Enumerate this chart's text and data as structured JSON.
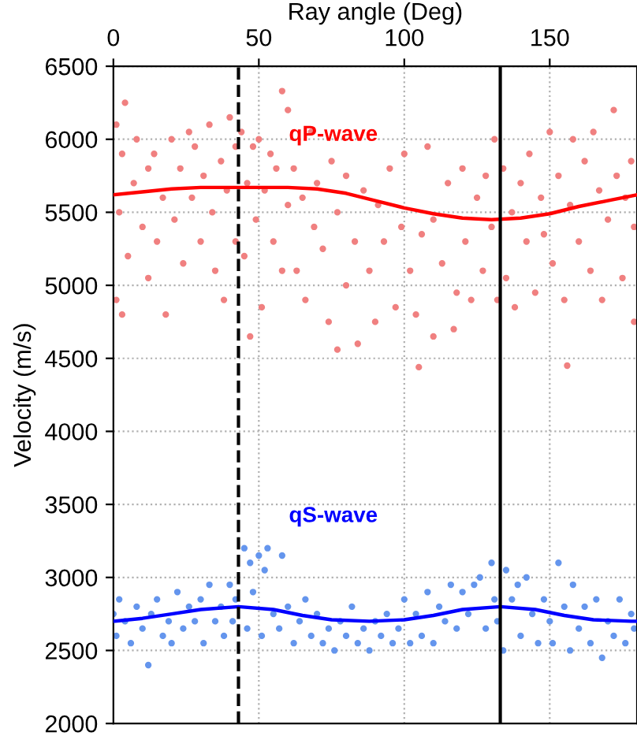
{
  "chart_data": {
    "type": "scatter",
    "xlabel": "Ray angle (Deg)",
    "ylabel": "Velocity (m/s)",
    "xlim": [
      0,
      180
    ],
    "xticks": [
      0,
      50,
      100,
      150
    ],
    "ylim": [
      2000,
      6500
    ],
    "yticks": [
      2000,
      2500,
      3000,
      3500,
      4000,
      4500,
      5000,
      5500,
      6000,
      6500
    ],
    "grid": true,
    "series": [
      {
        "marker": "circle",
        "color": "#f08080",
        "x": [
          1,
          4,
          3,
          2,
          1,
          3,
          5,
          7,
          8,
          10,
          12,
          12,
          14,
          15,
          17,
          18,
          20,
          21,
          23,
          24,
          26,
          27,
          28,
          30,
          31,
          33,
          34,
          35,
          37,
          38,
          39,
          40,
          42,
          42,
          44,
          45,
          46,
          47,
          48,
          49,
          50,
          51,
          52,
          54,
          55,
          56,
          58,
          58,
          60,
          60,
          62,
          63,
          65,
          66,
          68,
          69,
          70,
          72,
          74,
          75,
          77,
          77,
          80,
          80,
          83,
          84,
          86,
          88,
          90,
          91,
          93,
          95,
          97,
          99,
          100,
          102,
          104,
          105,
          106,
          108,
          110,
          110,
          113,
          115,
          117,
          118,
          120,
          121,
          123,
          125,
          127,
          128,
          130,
          131,
          132,
          134,
          135,
          137,
          138,
          140,
          142,
          143,
          145,
          147,
          148,
          150,
          151,
          153,
          155,
          156,
          157,
          158,
          160,
          162,
          164,
          165,
          167,
          168,
          170,
          172,
          173,
          175,
          176,
          178,
          179,
          179
        ],
        "values": [
          6100,
          6250,
          5900,
          5500,
          4900,
          4800,
          5200,
          5700,
          6000,
          5400,
          5800,
          5050,
          5900,
          5300,
          5600,
          4800,
          6000,
          5450,
          5800,
          5150,
          6050,
          5600,
          5950,
          5300,
          5750,
          6100,
          5500,
          5100,
          5850,
          4900,
          5650,
          6150,
          5950,
          5300,
          6050,
          5200,
          5700,
          4650,
          5950,
          5450,
          6000,
          4850,
          5650,
          5900,
          5300,
          5800,
          6330,
          5100,
          6200,
          5550,
          5800,
          5100,
          5600,
          4900,
          6050,
          5400,
          5700,
          5250,
          4750,
          5850,
          4560,
          5500,
          5000,
          5750,
          5300,
          4600,
          5650,
          5100,
          4750,
          5550,
          5300,
          5800,
          4850,
          5400,
          5900,
          5100,
          4800,
          4440,
          5350,
          5950,
          4650,
          5450,
          5150,
          5700,
          4700,
          4950,
          5800,
          5300,
          4900,
          5600,
          5100,
          5750,
          5400,
          6000,
          4900,
          5800,
          5050,
          5500,
          4850,
          5700,
          5300,
          5900,
          4950,
          5600,
          5350,
          6050,
          5150,
          5750,
          4900,
          4450,
          5550,
          6000,
          5300,
          5850,
          5100,
          6050,
          5650,
          4900,
          5450,
          6200,
          5750,
          5050,
          5600,
          5850,
          4750,
          5400
        ]
      },
      {
        "marker": "circle",
        "color": "#6495ed",
        "x": [
          0,
          1,
          2,
          4,
          6,
          8,
          10,
          12,
          13,
          15,
          17,
          19,
          20,
          22,
          24,
          26,
          28,
          30,
          31,
          33,
          35,
          37,
          38,
          40,
          41,
          42,
          45,
          46,
          47,
          48,
          50,
          51,
          52,
          53,
          55,
          57,
          58,
          60,
          62,
          64,
          66,
          68,
          70,
          72,
          74,
          76,
          78,
          80,
          82,
          84,
          86,
          88,
          90,
          92,
          94,
          96,
          98,
          100,
          102,
          104,
          106,
          108,
          110,
          112,
          114,
          116,
          118,
          120,
          122,
          124,
          126,
          128,
          130,
          131,
          132,
          134,
          135,
          137,
          139,
          140,
          142,
          144,
          146,
          148,
          150,
          151,
          153,
          155,
          157,
          158,
          160,
          162,
          164,
          166,
          168,
          170,
          172,
          174,
          176,
          178,
          179
        ],
        "values": [
          2750,
          2600,
          2850,
          2700,
          2550,
          2800,
          2650,
          2400,
          2750,
          2850,
          2600,
          2700,
          2550,
          2900,
          2650,
          2800,
          2700,
          2850,
          2550,
          2950,
          2700,
          2800,
          2600,
          2950,
          2700,
          2850,
          3200,
          2650,
          3100,
          2900,
          3150,
          2600,
          3050,
          3200,
          2750,
          2650,
          3150,
          2800,
          2550,
          2700,
          2850,
          2600,
          2750,
          2550,
          2650,
          2500,
          2700,
          2600,
          2800,
          2550,
          2650,
          2500,
          2700,
          2600,
          2750,
          2550,
          2650,
          2850,
          2550,
          2750,
          2600,
          2900,
          2550,
          2800,
          2700,
          2950,
          2650,
          2900,
          2750,
          2950,
          3000,
          2650,
          3100,
          2850,
          2700,
          2500,
          3050,
          2850,
          2950,
          2600,
          3000,
          2750,
          2550,
          2850,
          2700,
          2550,
          3100,
          2800,
          2500,
          2950,
          2650,
          2800,
          2550,
          2850,
          2450,
          2700,
          2600,
          2850,
          2550,
          2750,
          2650
        ]
      },
      {
        "type": "line",
        "color": "#ff0000",
        "x": [
          0,
          10,
          20,
          30,
          40,
          50,
          60,
          70,
          80,
          90,
          100,
          110,
          120,
          130,
          140,
          150,
          160,
          170,
          180
        ],
        "values": [
          5620,
          5640,
          5660,
          5670,
          5670,
          5670,
          5670,
          5660,
          5630,
          5580,
          5530,
          5490,
          5460,
          5450,
          5460,
          5490,
          5540,
          5580,
          5620
        ]
      },
      {
        "type": "line",
        "color": "#0000ff",
        "x": [
          0,
          10,
          20,
          30,
          43,
          55,
          65,
          75,
          88,
          100,
          110,
          120,
          133,
          145,
          155,
          165,
          178,
          180
        ],
        "values": [
          2700,
          2720,
          2750,
          2780,
          2800,
          2780,
          2740,
          2710,
          2700,
          2710,
          2740,
          2780,
          2800,
          2780,
          2740,
          2710,
          2700,
          2700
        ]
      }
    ],
    "ref_lines": [
      {
        "axis": "x",
        "value": 43,
        "color": "#000000",
        "line_style": "dashed"
      },
      {
        "axis": "x",
        "value": 133,
        "color": "#000000",
        "line_style": "solid"
      }
    ],
    "annotations": [
      "qP-wave",
      "qS-wave"
    ]
  }
}
